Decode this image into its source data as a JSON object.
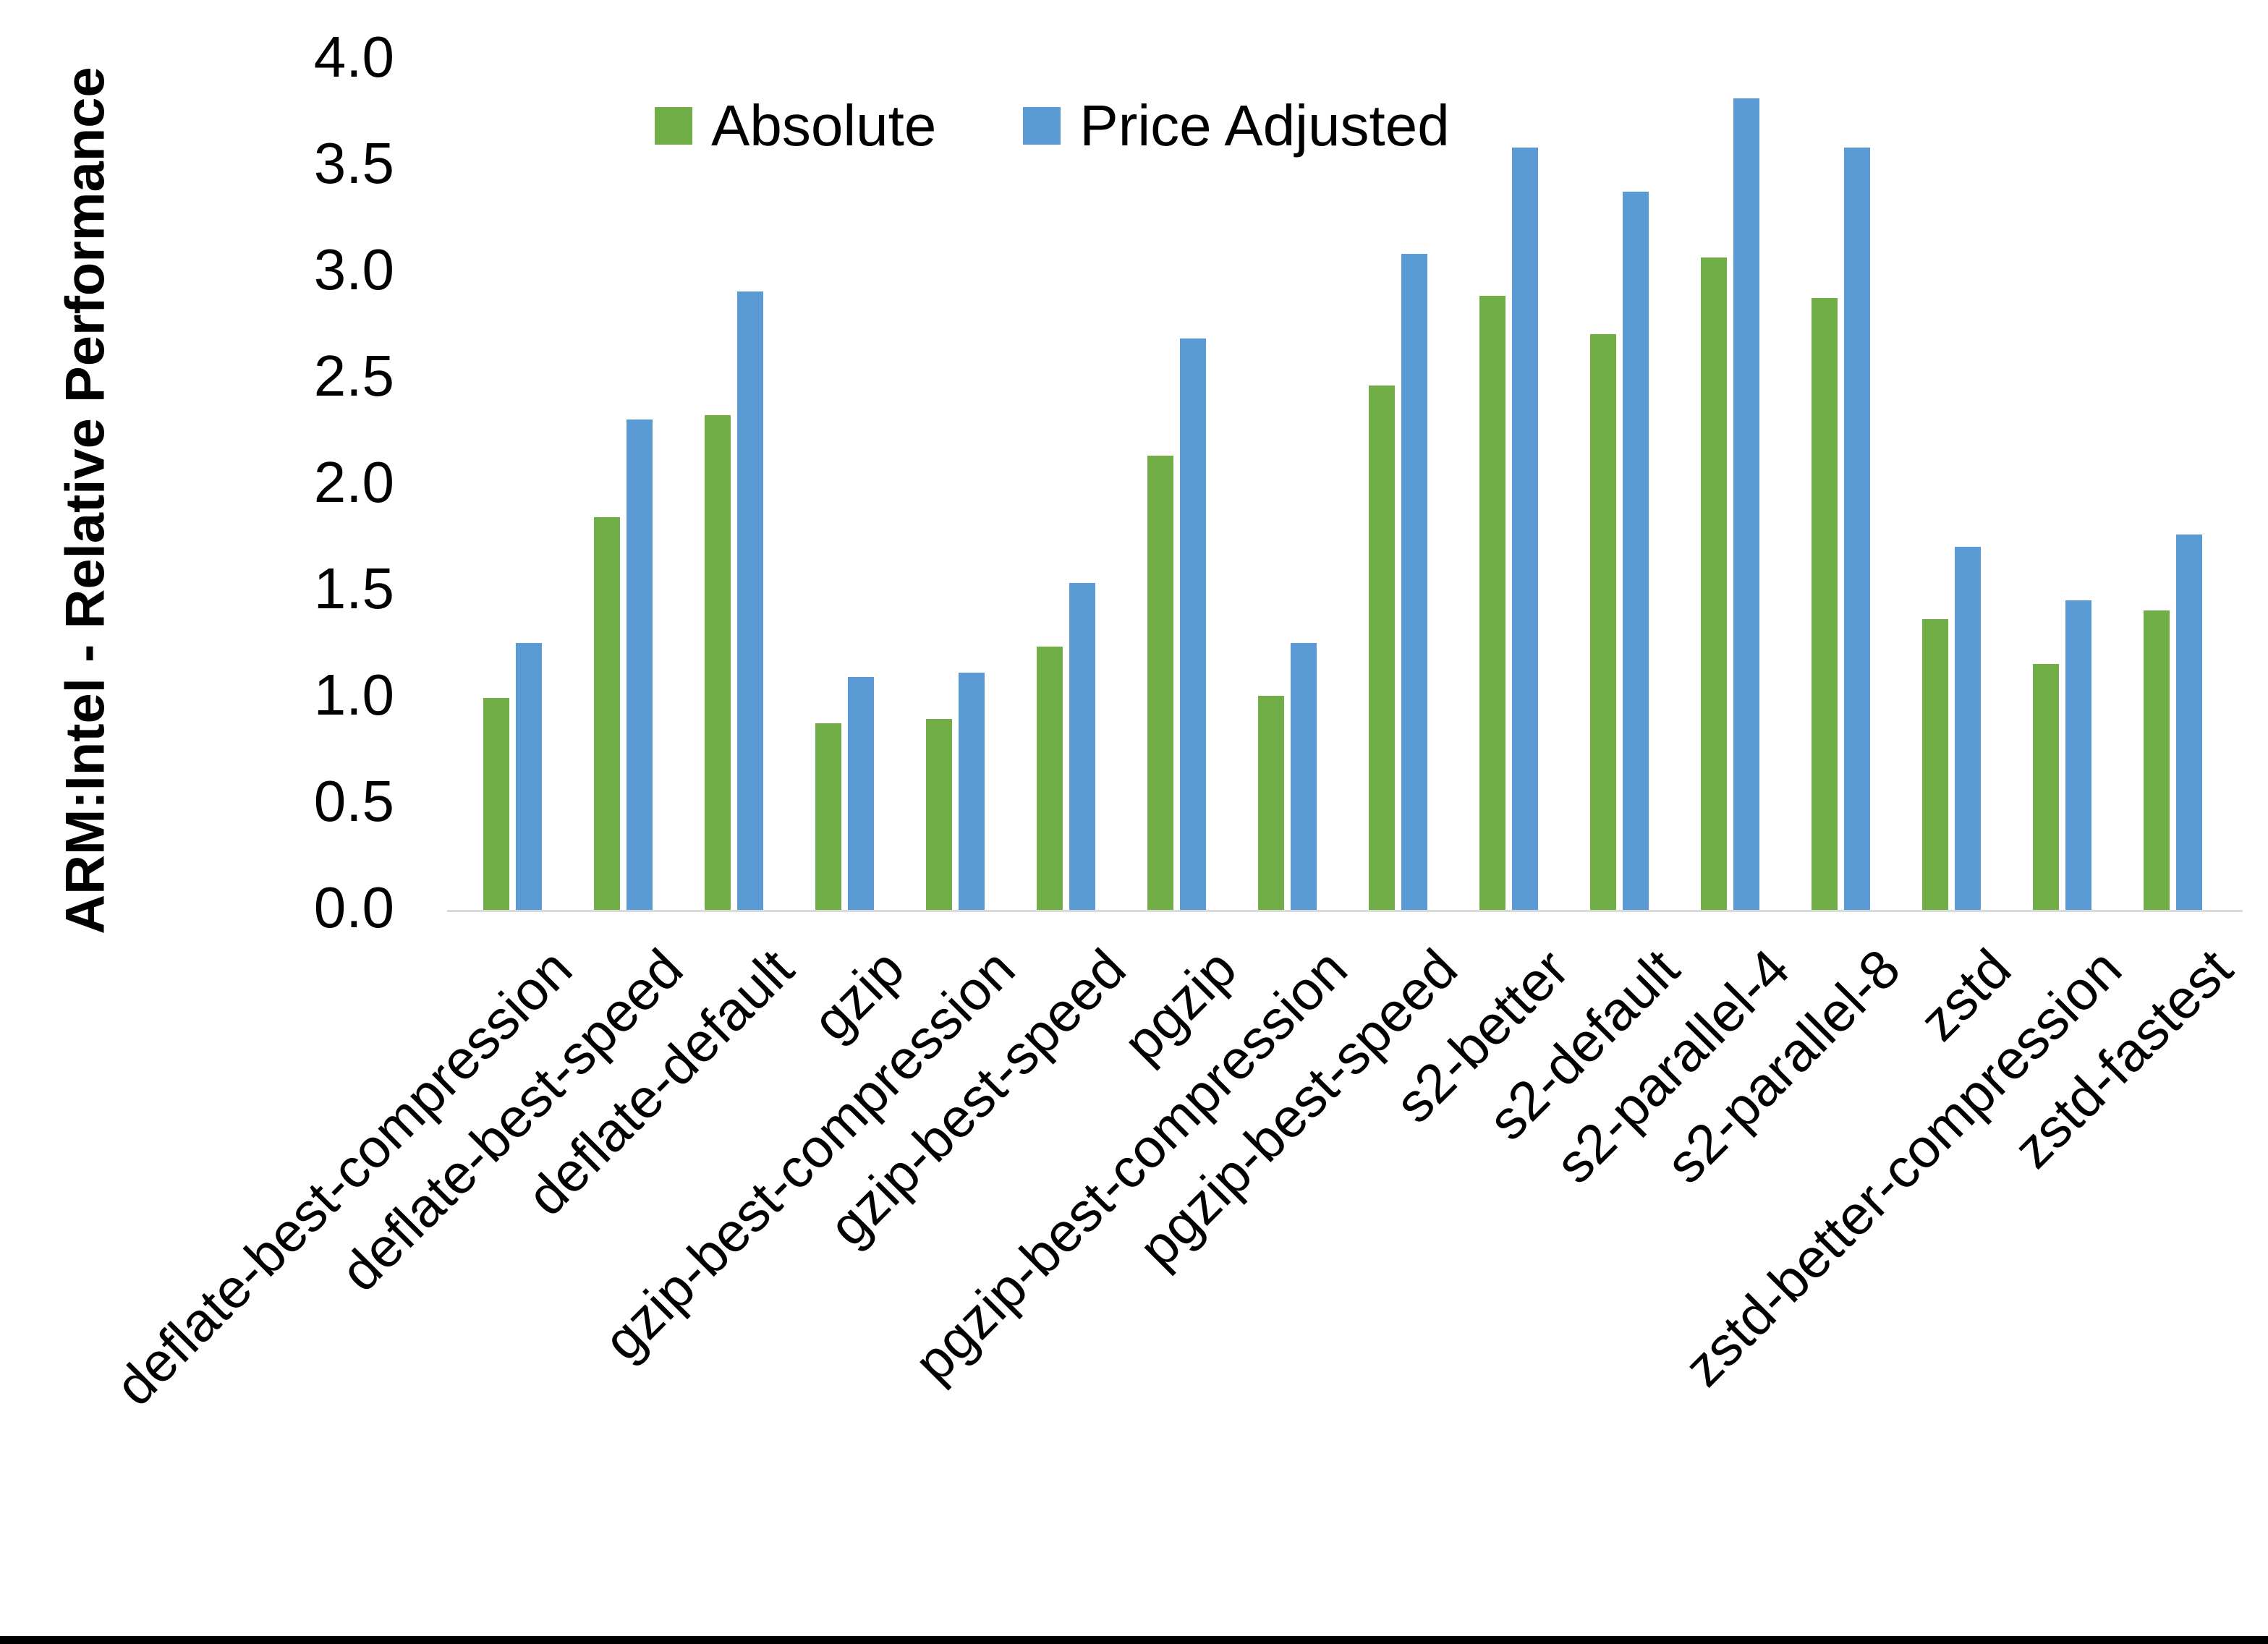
{
  "chart_data": {
    "type": "bar",
    "title": "",
    "ylabel": "ARM:Intel - Relative Performance",
    "xlabel": "",
    "ylim": [
      0.0,
      4.0
    ],
    "ytick_step": 0.5,
    "yticks": [
      "0.0",
      "0.5",
      "1.0",
      "1.5",
      "2.0",
      "2.5",
      "3.0",
      "3.5",
      "4.0"
    ],
    "grid": false,
    "legend_position": "top",
    "categories": [
      "deflate-best-compression",
      "deflate-best-speed",
      "deflate-default",
      "gzip",
      "gzip-best-compression",
      "gzip-best-speed",
      "pgzip",
      "pgzip-best-compression",
      "pgzip-best-speed",
      "s2-better",
      "s2-default",
      "s2-parallel-4",
      "s2-parallel-8",
      "zstd",
      "zstd-better-compression",
      "zstd-fastest"
    ],
    "series": [
      {
        "name": "Absolute",
        "color": "#70AD47",
        "values": [
          1.0,
          1.85,
          2.33,
          0.88,
          0.9,
          1.24,
          2.14,
          1.01,
          2.47,
          2.89,
          2.71,
          3.07,
          2.88,
          1.37,
          1.16,
          1.41
        ]
      },
      {
        "name": "Price Adjusted",
        "color": "#5B9BD5",
        "values": [
          1.26,
          2.31,
          2.91,
          1.1,
          1.12,
          1.54,
          2.69,
          1.26,
          3.09,
          3.59,
          3.38,
          3.82,
          3.59,
          1.71,
          1.46,
          1.77
        ]
      }
    ]
  },
  "colors": {
    "background": "#FFFFFF",
    "axis_line": "#D9D9D9",
    "text": "#000000",
    "bottom_border": "#000000"
  }
}
